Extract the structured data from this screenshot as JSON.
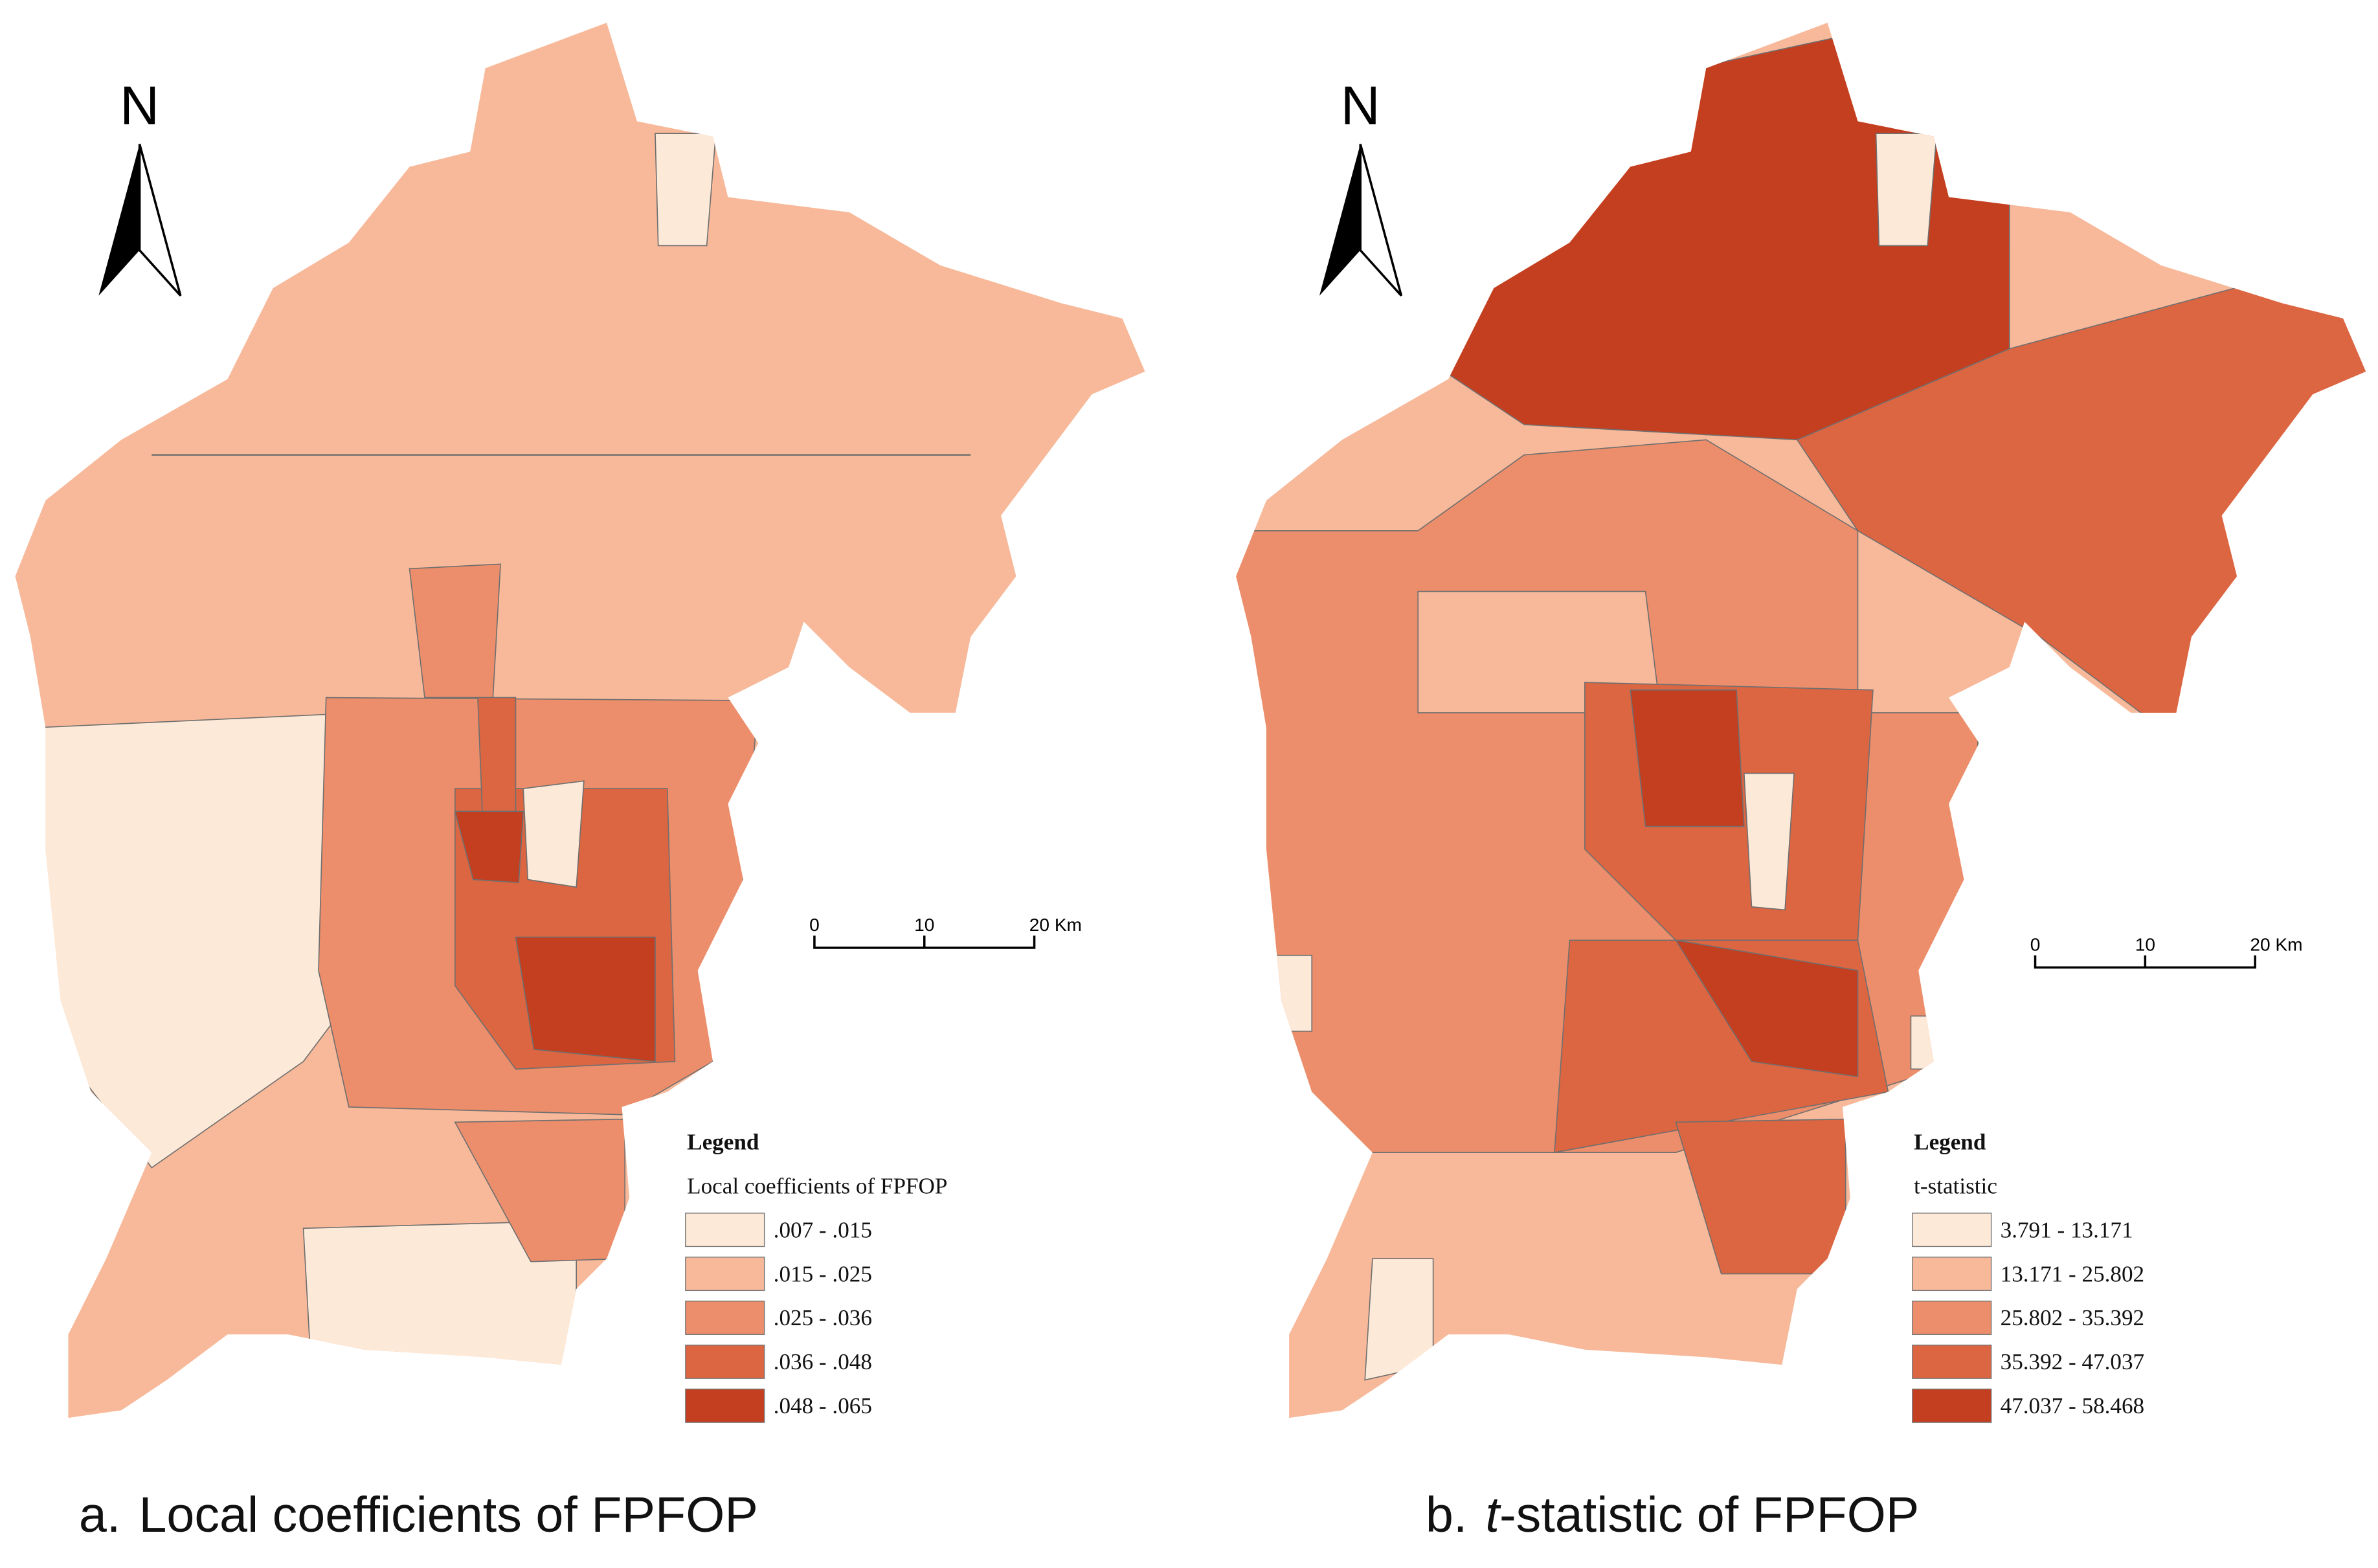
{
  "panels": [
    {
      "north": "N",
      "scale": {
        "ticks": [
          "0",
          "10",
          "20 Km"
        ]
      },
      "legend": {
        "title": "Legend",
        "subtitle": "Local coefficients of FPFOP",
        "classes": [
          {
            "label": ".007 - .015",
            "color": "#fde9d7"
          },
          {
            "label": ".015 - .025",
            "color": "#f7b99a"
          },
          {
            "label": ".025 - .036",
            "color": "#ec8e6b"
          },
          {
            "label": ".036 - .048",
            "color": "#dc6542"
          },
          {
            "label": ".048 - .065",
            "color": "#c43e20"
          }
        ]
      },
      "caption": [
        "a.",
        "Local coefficients of FPFOP"
      ]
    },
    {
      "north": "N",
      "scale": {
        "ticks": [
          "0",
          "10",
          "20 Km"
        ]
      },
      "legend": {
        "title": "Legend",
        "subtitle": "t-statistic",
        "classes": [
          {
            "label": "3.791 - 13.171",
            "color": "#fde9d7"
          },
          {
            "label": "13.171 - 25.802",
            "color": "#f7b99a"
          },
          {
            "label": "25.802 - 35.392",
            "color": "#ec8e6b"
          },
          {
            "label": "35.392 - 47.037",
            "color": "#dc6542"
          },
          {
            "label": "47.037 - 58.468",
            "color": "#c43e20"
          }
        ]
      },
      "caption": [
        "b.",
        "t",
        "-statistic of FPFOP"
      ]
    }
  ]
}
